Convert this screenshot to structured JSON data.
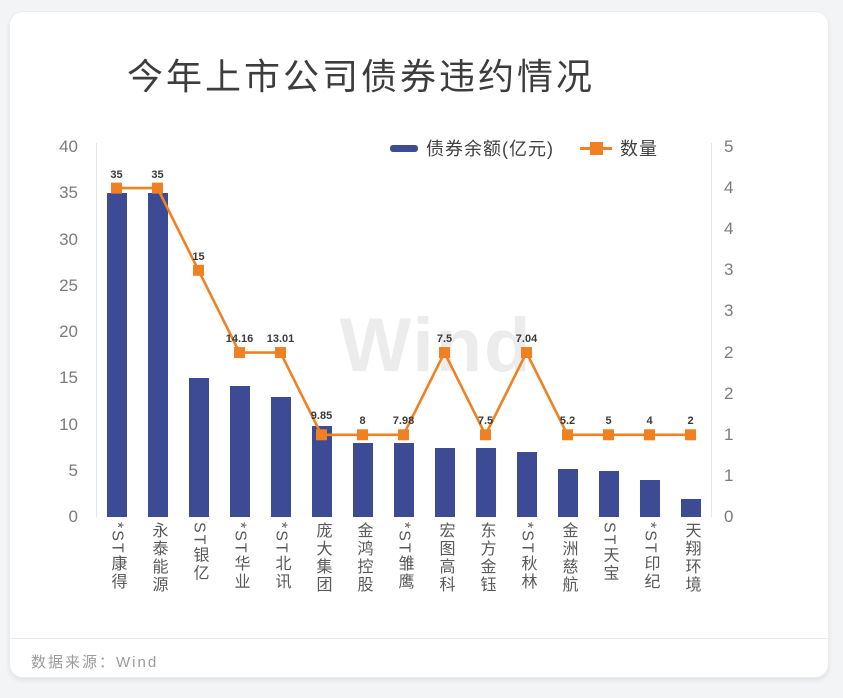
{
  "title": "今年上市公司债券违约情况",
  "legend": {
    "bar_label": "债券余额(亿元)",
    "line_label": "数量"
  },
  "watermark": "Wind",
  "footer": {
    "source_label": "数据来源：",
    "source_value": "Wind"
  },
  "colors": {
    "bar": "#3c4b93",
    "line": "#f08123",
    "marker": "#f08123",
    "title_text": "#3d3d3d",
    "axis_text": "#7b7b7b",
    "category_text": "#595959",
    "data_label_text": "#3a3a3a",
    "watermark_text": "#ececec",
    "axis_line": "#e4e5e8",
    "card_bg": "#ffffff",
    "page_bg": "#f3f4f6",
    "source_text": "#9b9b9b"
  },
  "chart_data": {
    "type": "combo",
    "title": "今年上市公司债券违约情况",
    "categories": [
      "*ST康得",
      "永泰能源",
      "ST银亿",
      "*ST华业",
      "*ST北讯",
      "庞大集团",
      "金鸿控股",
      "*ST雏鹰",
      "宏图高科",
      "东方金钰",
      "*ST秋林",
      "金洲慈航",
      "ST天宝",
      "*ST印纪",
      "天翔环境"
    ],
    "series": [
      {
        "name": "债券余额(亿元)",
        "type": "bar",
        "axis": "left",
        "values": [
          35,
          35,
          15,
          14.16,
          13.01,
          9.85,
          8,
          7.98,
          7.5,
          7.5,
          7.04,
          5.2,
          5,
          4,
          2
        ],
        "data_labels": [
          "35",
          "35",
          "15",
          "14.16",
          "13.01",
          "9.85",
          "8",
          "7.98",
          "7.5",
          "7.5",
          "7.04",
          "5.2",
          "5",
          "4",
          "2"
        ]
      },
      {
        "name": "数量",
        "type": "line",
        "axis": "right",
        "values": [
          4,
          4,
          3,
          2,
          2,
          1,
          1,
          1,
          2,
          1,
          2,
          1,
          1,
          1,
          1
        ]
      }
    ],
    "left_axis": {
      "min": 0,
      "max": 40,
      "tick_values": [
        40,
        35,
        30,
        25,
        20,
        15,
        10,
        5,
        0
      ]
    },
    "right_axis": {
      "min": 0,
      "max": 4.5,
      "tick_labels": [
        "5",
        "4",
        "4",
        "3",
        "3",
        "2",
        "2",
        "1",
        "1",
        "0"
      ]
    },
    "legend_position": "top",
    "grid": false,
    "source": "数据来源：Wind"
  }
}
